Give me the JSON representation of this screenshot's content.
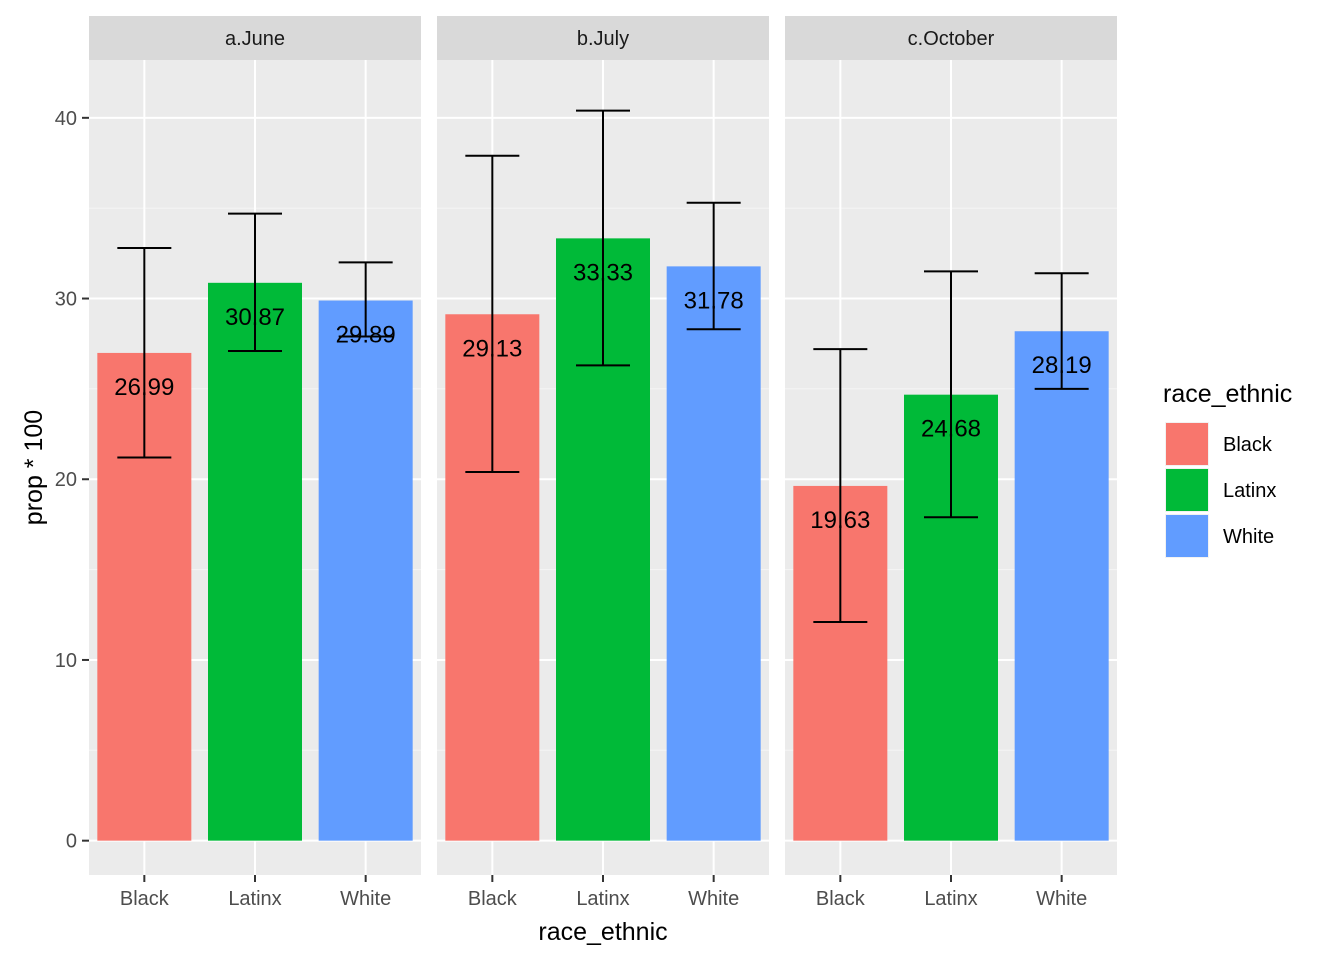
{
  "chart_data": {
    "type": "bar",
    "facets": [
      "a.June",
      "b.July",
      "c.October"
    ],
    "categories": [
      "Black",
      "Latinx",
      "White"
    ],
    "series": [
      {
        "name": "Black",
        "color": "#F8766D"
      },
      {
        "name": "Latinx",
        "color": "#00BA38"
      },
      {
        "name": "White",
        "color": "#619CFF"
      }
    ],
    "values": [
      [
        26.99,
        30.87,
        29.89
      ],
      [
        29.13,
        33.33,
        31.78
      ],
      [
        19.63,
        24.68,
        28.19
      ]
    ],
    "labels": [
      [
        "26.99",
        "30.87",
        "29.89"
      ],
      [
        "29.13",
        "33.33",
        "31.78"
      ],
      [
        "19.63",
        "24.68",
        "28.19"
      ]
    ],
    "error_low": [
      [
        21.2,
        27.1,
        27.9
      ],
      [
        20.4,
        26.3,
        28.3
      ],
      [
        12.1,
        17.9,
        25.0
      ]
    ],
    "error_high": [
      [
        32.8,
        34.7,
        32.0
      ],
      [
        37.9,
        40.4,
        35.3
      ],
      [
        27.2,
        31.5,
        31.4
      ]
    ],
    "xlabel": "race_ethnic",
    "ylabel": "prop * 100",
    "ylim": [
      -1.9,
      43.2
    ],
    "yticks": [
      0,
      10,
      20,
      30,
      40
    ],
    "legend_title": "race_ethnic",
    "legend_position": "right",
    "grid": true,
    "panel_background": "#EBEBEB",
    "strip_background": "#D9D9D9"
  }
}
